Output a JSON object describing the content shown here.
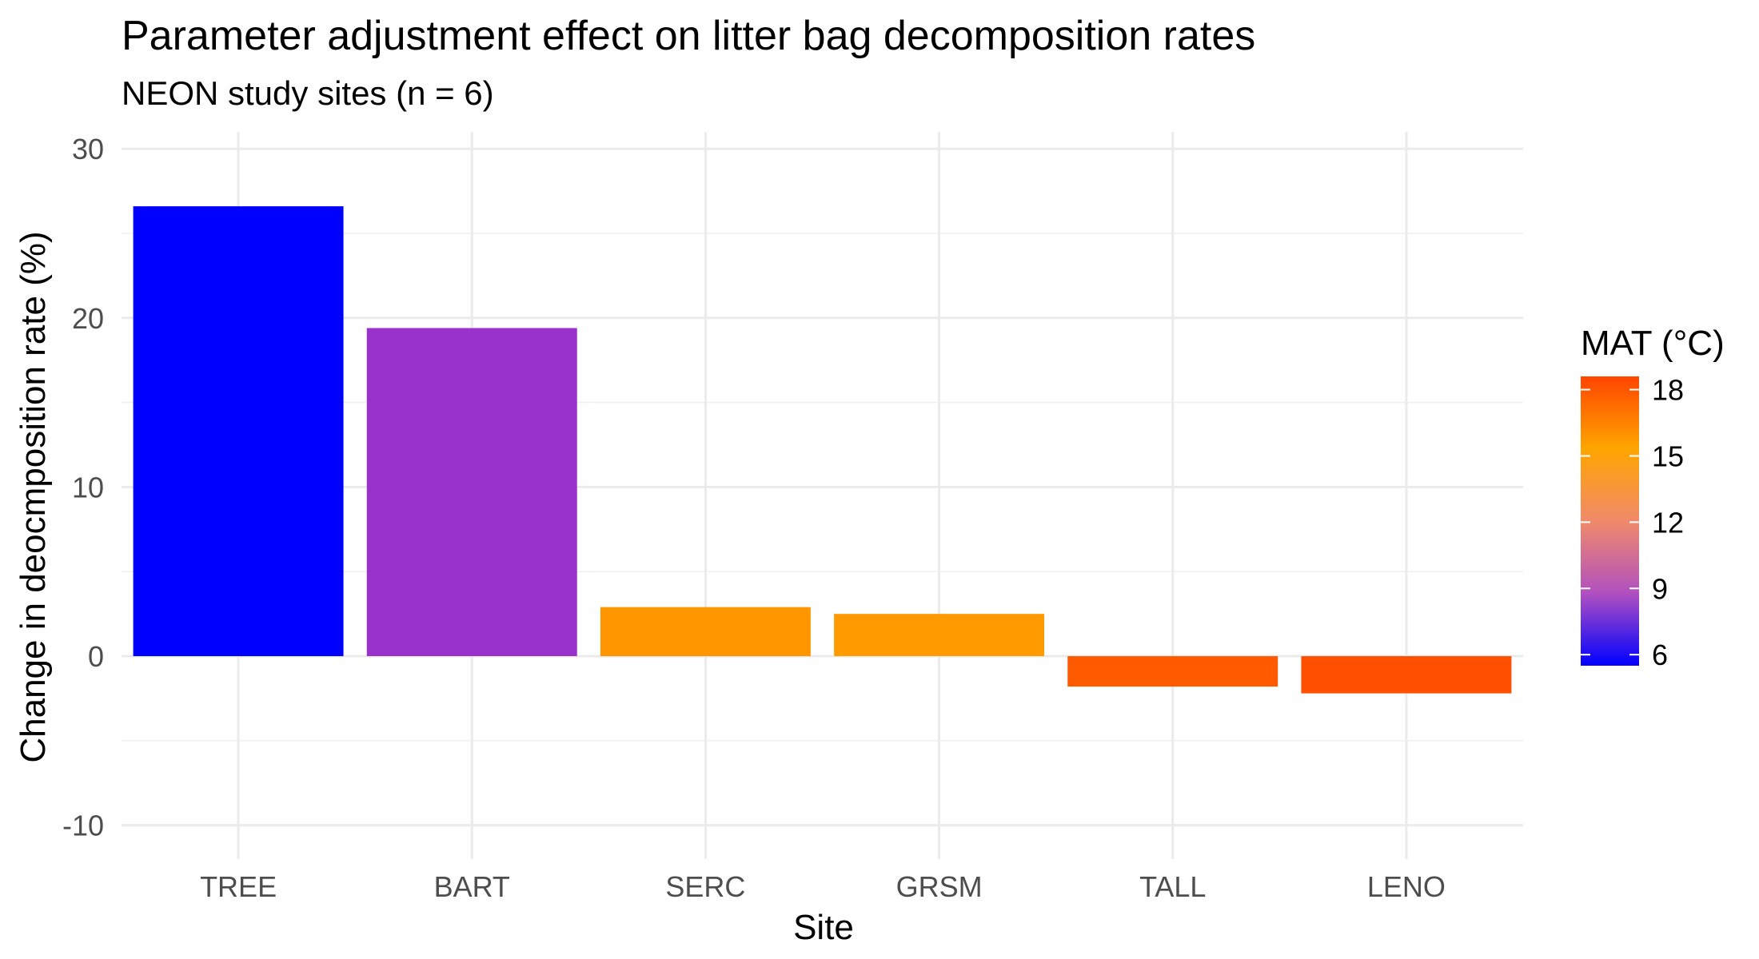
{
  "chart_data": {
    "type": "bar",
    "title": "Parameter adjustment effect on litter bag decomposition rates",
    "subtitle": "NEON study sites (n = 6)",
    "xlabel": "Site",
    "ylabel": "Change in deocmposition rate (%)",
    "categories": [
      "TREE",
      "BART",
      "SERC",
      "GRSM",
      "TALL",
      "LENO"
    ],
    "values": [
      26.6,
      19.4,
      2.9,
      2.5,
      -1.8,
      -2.2
    ],
    "mat": [
      5.6,
      8.6,
      13.5,
      13.4,
      17.4,
      18.1
    ],
    "colors": [
      "#0000ff",
      "#9932cc",
      "#ff9600",
      "#ff9a00",
      "#ff5a00",
      "#ff4f00"
    ],
    "ylim": [
      -12,
      31
    ],
    "yticks": [
      -10,
      0,
      10,
      20,
      30
    ],
    "ytick_labels": [
      "-10",
      "0",
      "10",
      "20",
      "30"
    ],
    "grid": true,
    "legend": {
      "title": "MAT (°C)",
      "placement": "right",
      "range": [
        5.5,
        18.6
      ],
      "ticks": [
        6,
        9,
        12,
        15,
        18
      ],
      "tick_labels": [
        "6",
        "9",
        "12",
        "15",
        "18"
      ],
      "colors": [
        "#0000ff",
        "#b050c0",
        "#f08a6a",
        "#ffa500",
        "#ff4500"
      ]
    }
  }
}
